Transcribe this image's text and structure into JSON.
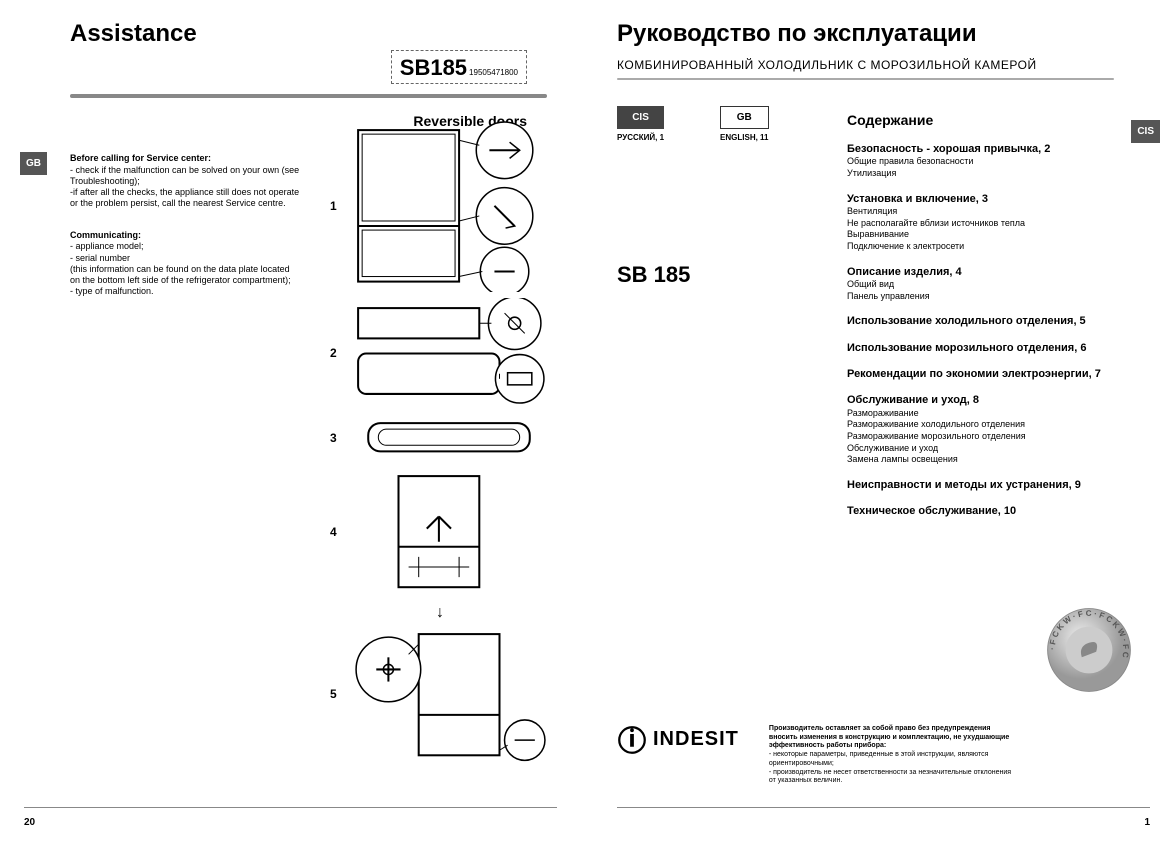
{
  "left": {
    "title": "Assistance",
    "model": "SB185",
    "serial": "19505471800",
    "lang_tab": "GB",
    "section_heading": "Reversible doors",
    "before_heading": "Before calling for Service center:",
    "before_lines": "- check if the malfunction can be solved on your own (see Troubleshooting);\n-if after all the checks, the appliance still does not operate or the problem persist, call the nearest Service centre.",
    "comm_heading": "Communicating:",
    "comm_lines": "- appliance model;\n- serial number\n(this information can be found on the data plate located on the bottom left side of the refrigerator compartment);\n- type of malfunction.",
    "steps": [
      "1",
      "2",
      "3",
      "4",
      "5"
    ],
    "page_num": "20"
  },
  "right": {
    "title": "Руководство по эксплуатации",
    "subtitle": "КОМБИНИРОВАННЫЙ ХОЛОДИЛЬНИК С МОРОЗИЛЬНОЙ КАМЕРОЙ",
    "lang_tab": "CIS",
    "lang_cis": "CIS",
    "lang_gb": "GB",
    "lang_cis_label": "РУССКИЙ, 1",
    "lang_gb_label": "ENGLISH, 11",
    "model": "SB 185",
    "toc_heading": "Содержание",
    "toc": [
      {
        "title": "Безопасность -  хорошая привычка, 2",
        "subs": [
          "Общие правила безопасности",
          "Утилизация"
        ]
      },
      {
        "title": "Установка и включение, 3",
        "subs": [
          "Вентиляция",
          "Не располагайте вблизи источников тепла",
          "Выравнивание",
          "Подключение к электросети"
        ]
      },
      {
        "title": "Описание изделия, 4",
        "subs": [
          "Общий вид",
          "Панель управления"
        ]
      },
      {
        "title": "Использование холодильного отделения, 5",
        "subs": []
      },
      {
        "title": "Использование морозильного отделения, 6",
        "subs": []
      },
      {
        "title": "Рекомендации по экономии электроэнергии, 7",
        "subs": []
      },
      {
        "title": "Обслуживание и уход, 8",
        "subs": [
          "Размораживание",
          "Размораживание холодильного отделения",
          "Размораживание морозильного отделения",
          "Обслуживание и уход",
          "Замена лампы освещения"
        ]
      },
      {
        "title": "Неисправности и методы их устранения, 9",
        "subs": []
      },
      {
        "title": "Техническое обслуживание, 10",
        "subs": []
      }
    ],
    "brand": "INDESIT",
    "disclaimer_bold": "Производитель оставляет за собой право без предупреждения вносить изменения в конструкцию и комплектацию, не ухудшающие эффективность работы прибора:",
    "disclaimer_body": "- некоторые параметры, приведенные в этой инструкции, являются ориентировочными;\n- производитель не несет ответственности за незначительные отклонения от указанных величин.",
    "badge_text": "· FCKW · FCKW · FCKW · ",
    "page_num": "1"
  },
  "colors": {
    "rule": "#888888",
    "tab_bg": "#555555",
    "badge": "#b8b8b8"
  }
}
